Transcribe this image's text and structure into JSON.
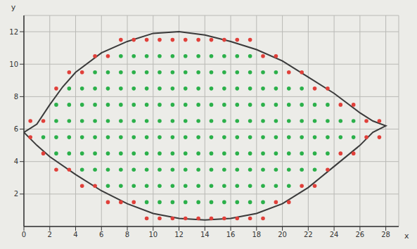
{
  "chart_data": {
    "type": "scatter",
    "x_label": "x",
    "y_label": "y",
    "xlim": [
      0,
      29
    ],
    "ylim": [
      0,
      13
    ],
    "xticks": [
      0,
      2,
      4,
      6,
      8,
      10,
      12,
      14,
      16,
      18,
      20,
      22,
      24,
      26,
      28
    ],
    "yticks": [
      2,
      4,
      6,
      8,
      10,
      12
    ],
    "grid": true,
    "series": [
      {
        "type": "line",
        "color": "#3a3a3a",
        "line_style": "solid",
        "x": [
          0,
          1,
          2,
          3,
          4,
          6,
          8,
          10,
          12,
          14,
          16,
          18,
          20,
          22,
          24,
          26,
          27,
          28,
          27,
          26,
          24,
          22,
          20,
          18,
          16,
          14,
          12,
          10,
          8,
          6,
          4,
          2,
          1,
          0
        ],
        "y": [
          5.8,
          6.3,
          7.5,
          8.6,
          9.5,
          10.7,
          11.4,
          11.9,
          12,
          11.8,
          11.4,
          10.9,
          10.2,
          9.2,
          8.2,
          7,
          6.5,
          6.2,
          5.8,
          5,
          3.7,
          2.4,
          1.4,
          0.8,
          0.5,
          0.4,
          0.5,
          0.8,
          1.4,
          2.2,
          3.2,
          4.3,
          5,
          5.8
        ]
      },
      {
        "type": "scatter",
        "color": "#2bb04a",
        "marker": "circle",
        "columns": [
          {
            "x": 1.5,
            "y": [
              5.5
            ]
          },
          {
            "x": 2.5,
            "y": [
              4.5,
              5.5,
              6.5,
              7.5
            ]
          },
          {
            "x": 3.5,
            "y": [
              4.5,
              5.5,
              6.5,
              7.5,
              8.5
            ]
          },
          {
            "x": 4.5,
            "y": [
              3.5,
              4.5,
              5.5,
              6.5,
              7.5,
              8.5
            ]
          },
          {
            "x": 5.5,
            "y": [
              3.5,
              4.5,
              5.5,
              6.5,
              7.5,
              8.5,
              9.5
            ]
          },
          {
            "x": 6.5,
            "y": [
              2.5,
              3.5,
              4.5,
              5.5,
              6.5,
              7.5,
              8.5,
              9.5
            ]
          },
          {
            "x": 7.5,
            "y": [
              2.5,
              3.5,
              4.5,
              5.5,
              6.5,
              7.5,
              8.5,
              9.5,
              10.5
            ]
          },
          {
            "x": 8.5,
            "y": [
              2.5,
              3.5,
              4.5,
              5.5,
              6.5,
              7.5,
              8.5,
              9.5,
              10.5
            ]
          },
          {
            "x": 9.5,
            "y": [
              1.5,
              2.5,
              3.5,
              4.5,
              5.5,
              6.5,
              7.5,
              8.5,
              9.5,
              10.5
            ]
          },
          {
            "x": 10.5,
            "y": [
              1.5,
              2.5,
              3.5,
              4.5,
              5.5,
              6.5,
              7.5,
              8.5,
              9.5,
              10.5
            ]
          },
          {
            "x": 11.5,
            "y": [
              1.5,
              2.5,
              3.5,
              4.5,
              5.5,
              6.5,
              7.5,
              8.5,
              9.5,
              10.5
            ]
          },
          {
            "x": 12.5,
            "y": [
              1.5,
              2.5,
              3.5,
              4.5,
              5.5,
              6.5,
              7.5,
              8.5,
              9.5,
              10.5
            ]
          },
          {
            "x": 13.5,
            "y": [
              1.5,
              2.5,
              3.5,
              4.5,
              5.5,
              6.5,
              7.5,
              8.5,
              9.5,
              10.5
            ]
          },
          {
            "x": 14.5,
            "y": [
              1.5,
              2.5,
              3.5,
              4.5,
              5.5,
              6.5,
              7.5,
              8.5,
              9.5,
              10.5
            ]
          },
          {
            "x": 15.5,
            "y": [
              1.5,
              2.5,
              3.5,
              4.5,
              5.5,
              6.5,
              7.5,
              8.5,
              9.5,
              10.5
            ]
          },
          {
            "x": 16.5,
            "y": [
              1.5,
              2.5,
              3.5,
              4.5,
              5.5,
              6.5,
              7.5,
              8.5,
              9.5,
              10.5
            ]
          },
          {
            "x": 17.5,
            "y": [
              1.5,
              2.5,
              3.5,
              4.5,
              5.5,
              6.5,
              7.5,
              8.5,
              9.5,
              10.5
            ]
          },
          {
            "x": 18.5,
            "y": [
              1.5,
              2.5,
              3.5,
              4.5,
              5.5,
              6.5,
              7.5,
              8.5,
              9.5
            ]
          },
          {
            "x": 19.5,
            "y": [
              2.5,
              3.5,
              4.5,
              5.5,
              6.5,
              7.5,
              8.5,
              9.5
            ]
          },
          {
            "x": 20.5,
            "y": [
              2.5,
              3.5,
              4.5,
              5.5,
              6.5,
              7.5,
              8.5
            ]
          },
          {
            "x": 21.5,
            "y": [
              3.5,
              4.5,
              5.5,
              6.5,
              7.5,
              8.5
            ]
          },
          {
            "x": 22.5,
            "y": [
              3.5,
              4.5,
              5.5,
              6.5,
              7.5
            ]
          },
          {
            "x": 23.5,
            "y": [
              4.5,
              5.5,
              6.5,
              7.5
            ]
          },
          {
            "x": 24.5,
            "y": [
              5.5,
              6.5
            ]
          },
          {
            "x": 25.5,
            "y": [
              5.5,
              6.5
            ]
          }
        ]
      },
      {
        "type": "scatter",
        "color": "#e0403a",
        "marker": "circle",
        "columns": [
          {
            "x": 0.5,
            "y": [
              5.5,
              6.5
            ]
          },
          {
            "x": 1.5,
            "y": [
              4.5,
              6.5
            ]
          },
          {
            "x": 2.5,
            "y": [
              3.5,
              8.5
            ]
          },
          {
            "x": 3.5,
            "y": [
              3.5,
              9.5
            ]
          },
          {
            "x": 4.5,
            "y": [
              2.5,
              9.5
            ]
          },
          {
            "x": 5.5,
            "y": [
              2.5,
              10.5
            ]
          },
          {
            "x": 6.5,
            "y": [
              1.5,
              10.5
            ]
          },
          {
            "x": 7.5,
            "y": [
              1.5,
              11.5
            ]
          },
          {
            "x": 8.5,
            "y": [
              1.5,
              11.5
            ]
          },
          {
            "x": 9.5,
            "y": [
              0.5,
              11.5
            ]
          },
          {
            "x": 10.5,
            "y": [
              0.5,
              11.5
            ]
          },
          {
            "x": 11.5,
            "y": [
              0.5,
              11.5
            ]
          },
          {
            "x": 12.5,
            "y": [
              0.5,
              11.5
            ]
          },
          {
            "x": 13.5,
            "y": [
              0.5,
              11.5
            ]
          },
          {
            "x": 14.5,
            "y": [
              0.5,
              11.5
            ]
          },
          {
            "x": 15.5,
            "y": [
              0.5,
              11.5
            ]
          },
          {
            "x": 16.5,
            "y": [
              0.5,
              11.5
            ]
          },
          {
            "x": 17.5,
            "y": [
              0.5,
              11.5
            ]
          },
          {
            "x": 18.5,
            "y": [
              0.5,
              10.5
            ]
          },
          {
            "x": 19.5,
            "y": [
              1.5,
              10.5
            ]
          },
          {
            "x": 20.5,
            "y": [
              1.5,
              9.5
            ]
          },
          {
            "x": 21.5,
            "y": [
              2.5,
              9.5
            ]
          },
          {
            "x": 22.5,
            "y": [
              2.5,
              8.5
            ]
          },
          {
            "x": 23.5,
            "y": [
              3.5,
              8.5
            ]
          },
          {
            "x": 24.5,
            "y": [
              4.5,
              7.5
            ]
          },
          {
            "x": 25.5,
            "y": [
              4.5,
              7.5
            ]
          },
          {
            "x": 26.5,
            "y": [
              5.5,
              6.5
            ]
          },
          {
            "x": 27.5,
            "y": [
              5.5,
              6.5
            ]
          }
        ]
      }
    ]
  }
}
